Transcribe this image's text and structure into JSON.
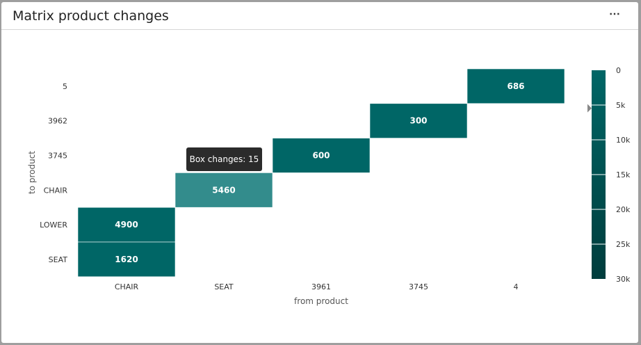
{
  "panel": {
    "title": "Matrix product changes",
    "menu_label": "⋯"
  },
  "tooltip": {
    "text": "Box changes: 15"
  },
  "chart_data": {
    "type": "heatmap",
    "xlabel": "from product",
    "ylabel": "to product",
    "x_categories": [
      "CHAIR",
      "SEAT",
      "3961",
      "3745",
      "4"
    ],
    "y_categories": [
      "5",
      "3962",
      "3745",
      "CHAIR",
      "LOWER",
      "SEAT"
    ],
    "cells": [
      {
        "x": "4",
        "y": "5",
        "value": 686,
        "label": "686"
      },
      {
        "x": "3745",
        "y": "3962",
        "value": 300,
        "label": "300"
      },
      {
        "x": "3961",
        "y": "3745",
        "value": 600,
        "label": "600"
      },
      {
        "x": "SEAT",
        "y": "CHAIR",
        "value": 5460,
        "label": "5460",
        "highlighted": true
      },
      {
        "x": "CHAIR",
        "y": "LOWER",
        "value": 4900,
        "label": "4900"
      },
      {
        "x": "CHAIR",
        "y": "SEAT",
        "value": 1620,
        "label": "1620"
      }
    ],
    "colorbar": {
      "ticks": [
        "0",
        "5k",
        "10k",
        "15k",
        "20k",
        "25k",
        "30k"
      ],
      "range": [
        0,
        30000
      ],
      "color_low": "#006666",
      "color_high": "#003d3d",
      "indicator_value": 5460
    },
    "colors": {
      "cell": "#006666",
      "cell_highlight": "#338c8c",
      "cell_label": "#ffffff"
    }
  }
}
